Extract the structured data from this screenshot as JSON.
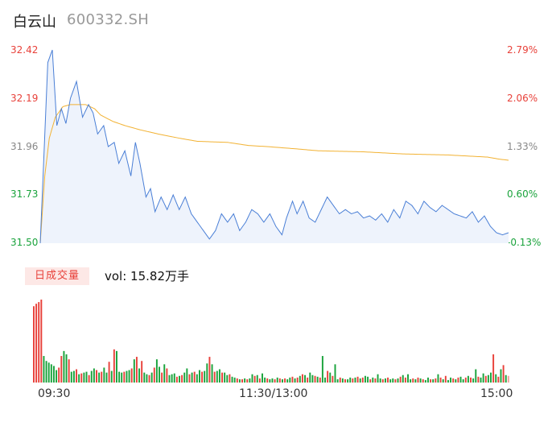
{
  "header": {
    "name": "白云山",
    "code": "600332.SH"
  },
  "volume_panel": {
    "tag": "日成交量",
    "vol_text": "vol: 15.82万手"
  },
  "colors": {
    "up": "#e8413a",
    "down": "#1aa33c",
    "neutral": "#888888",
    "price_line": "#4a7fd6",
    "avg_line": "#f2b233",
    "area": "#eef3fc"
  },
  "chart_data": {
    "type": "line",
    "title": "",
    "price_axis": {
      "ticks": [
        "32.42",
        "32.19",
        "31.96",
        "31.73",
        "31.50"
      ],
      "min": 31.5,
      "max": 32.42
    },
    "pct_axis": {
      "ticks": [
        "2.79%",
        "2.06%",
        "1.33%",
        "0.60%",
        "-0.13%"
      ]
    },
    "x_ticks": [
      "09:30",
      "11:30/13:00",
      "15:00"
    ],
    "price_keys": [
      [
        0,
        31.5
      ],
      [
        2,
        31.84
      ],
      [
        5,
        32.36
      ],
      [
        8,
        32.42
      ],
      [
        11,
        32.06
      ],
      [
        14,
        32.14
      ],
      [
        17,
        32.07
      ],
      [
        20,
        32.19
      ],
      [
        24,
        32.27
      ],
      [
        28,
        32.1
      ],
      [
        32,
        32.16
      ],
      [
        35,
        32.12
      ],
      [
        38,
        32.02
      ],
      [
        42,
        32.06
      ],
      [
        45,
        31.96
      ],
      [
        49,
        31.98
      ],
      [
        52,
        31.88
      ],
      [
        56,
        31.94
      ],
      [
        60,
        31.82
      ],
      [
        63,
        31.98
      ],
      [
        66,
        31.88
      ],
      [
        70,
        31.72
      ],
      [
        73,
        31.76
      ],
      [
        76,
        31.65
      ],
      [
        80,
        31.72
      ],
      [
        84,
        31.66
      ],
      [
        88,
        31.73
      ],
      [
        92,
        31.66
      ],
      [
        96,
        31.72
      ],
      [
        100,
        31.64
      ],
      [
        104,
        31.6
      ],
      [
        108,
        31.56
      ],
      [
        112,
        31.52
      ],
      [
        116,
        31.56
      ],
      [
        120,
        31.64
      ],
      [
        124,
        31.6
      ],
      [
        128,
        31.64
      ],
      [
        132,
        31.56
      ],
      [
        136,
        31.6
      ],
      [
        140,
        31.66
      ],
      [
        144,
        31.64
      ],
      [
        148,
        31.6
      ],
      [
        152,
        31.64
      ],
      [
        156,
        31.58
      ],
      [
        160,
        31.54
      ],
      [
        163,
        31.62
      ],
      [
        167,
        31.7
      ],
      [
        170,
        31.64
      ],
      [
        174,
        31.7
      ],
      [
        178,
        31.62
      ],
      [
        182,
        31.6
      ],
      [
        186,
        31.66
      ],
      [
        190,
        31.72
      ],
      [
        194,
        31.68
      ],
      [
        198,
        31.64
      ],
      [
        202,
        31.66
      ],
      [
        206,
        31.64
      ],
      [
        210,
        31.65
      ],
      [
        214,
        31.62
      ],
      [
        218,
        31.63
      ],
      [
        222,
        31.61
      ],
      [
        226,
        31.64
      ],
      [
        230,
        31.6
      ],
      [
        234,
        31.66
      ],
      [
        238,
        31.62
      ],
      [
        242,
        31.7
      ],
      [
        246,
        31.68
      ],
      [
        250,
        31.64
      ],
      [
        254,
        31.7
      ],
      [
        258,
        31.67
      ],
      [
        262,
        31.65
      ],
      [
        266,
        31.68
      ],
      [
        270,
        31.66
      ],
      [
        274,
        31.64
      ],
      [
        278,
        31.63
      ],
      [
        282,
        31.62
      ],
      [
        286,
        31.65
      ],
      [
        290,
        31.6
      ],
      [
        294,
        31.63
      ],
      [
        298,
        31.58
      ],
      [
        302,
        31.55
      ],
      [
        306,
        31.54
      ],
      [
        310,
        31.55
      ]
    ],
    "avg_keys": [
      [
        0,
        31.5
      ],
      [
        3,
        31.82
      ],
      [
        6,
        32.0
      ],
      [
        10,
        32.1
      ],
      [
        15,
        32.15
      ],
      [
        20,
        32.16
      ],
      [
        30,
        32.16
      ],
      [
        36,
        32.14
      ],
      [
        40,
        32.11
      ],
      [
        48,
        32.08
      ],
      [
        56,
        32.06
      ],
      [
        66,
        32.04
      ],
      [
        78,
        32.02
      ],
      [
        92,
        32.0
      ],
      [
        104,
        31.985
      ],
      [
        124,
        31.98
      ],
      [
        138,
        31.965
      ],
      [
        150,
        31.96
      ],
      [
        168,
        31.95
      ],
      [
        184,
        31.94
      ],
      [
        214,
        31.935
      ],
      [
        240,
        31.925
      ],
      [
        270,
        31.92
      ],
      [
        296,
        31.91
      ],
      [
        304,
        31.9
      ],
      [
        310,
        31.895
      ]
    ],
    "volume": [
      [
        92,
        0
      ],
      [
        95,
        0
      ],
      [
        97,
        0
      ],
      [
        100,
        0
      ],
      [
        32,
        1
      ],
      [
        26,
        1
      ],
      [
        24,
        1
      ],
      [
        22,
        1
      ],
      [
        20,
        1
      ],
      [
        15,
        1
      ],
      [
        18,
        0
      ],
      [
        32,
        0
      ],
      [
        38,
        1
      ],
      [
        34,
        1
      ],
      [
        28,
        0
      ],
      [
        13,
        1
      ],
      [
        14,
        1
      ],
      [
        16,
        0
      ],
      [
        10,
        1
      ],
      [
        11,
        0
      ],
      [
        12,
        1
      ],
      [
        13,
        1
      ],
      [
        9,
        0
      ],
      [
        14,
        1
      ],
      [
        17,
        1
      ],
      [
        15,
        0
      ],
      [
        12,
        1
      ],
      [
        13,
        0
      ],
      [
        18,
        1
      ],
      [
        12,
        1
      ],
      [
        25,
        0
      ],
      [
        14,
        1
      ],
      [
        40,
        0
      ],
      [
        38,
        1
      ],
      [
        13,
        1
      ],
      [
        12,
        1
      ],
      [
        13,
        0
      ],
      [
        14,
        1
      ],
      [
        15,
        1
      ],
      [
        17,
        0
      ],
      [
        28,
        1
      ],
      [
        31,
        0
      ],
      [
        17,
        1
      ],
      [
        26,
        0
      ],
      [
        12,
        1
      ],
      [
        10,
        1
      ],
      [
        9,
        0
      ],
      [
        12,
        1
      ],
      [
        18,
        0
      ],
      [
        28,
        1
      ],
      [
        19,
        1
      ],
      [
        12,
        0
      ],
      [
        22,
        1
      ],
      [
        17,
        0
      ],
      [
        9,
        1
      ],
      [
        10,
        1
      ],
      [
        11,
        1
      ],
      [
        7,
        0
      ],
      [
        8,
        1
      ],
      [
        9,
        0
      ],
      [
        12,
        1
      ],
      [
        17,
        1
      ],
      [
        10,
        0
      ],
      [
        12,
        1
      ],
      [
        13,
        0
      ],
      [
        10,
        1
      ],
      [
        15,
        1
      ],
      [
        13,
        0
      ],
      [
        14,
        1
      ],
      [
        23,
        1
      ],
      [
        31,
        0
      ],
      [
        22,
        1
      ],
      [
        13,
        0
      ],
      [
        14,
        1
      ],
      [
        16,
        1
      ],
      [
        12,
        0
      ],
      [
        12,
        1
      ],
      [
        9,
        1
      ],
      [
        10,
        0
      ],
      [
        7,
        1
      ],
      [
        6,
        1
      ],
      [
        5,
        0
      ],
      [
        4,
        1
      ],
      [
        4,
        0
      ],
      [
        5,
        1
      ],
      [
        4,
        0
      ],
      [
        5,
        1
      ],
      [
        10,
        1
      ],
      [
        8,
        0
      ],
      [
        9,
        1
      ],
      [
        5,
        0
      ],
      [
        11,
        1
      ],
      [
        6,
        1
      ],
      [
        5,
        0
      ],
      [
        4,
        1
      ],
      [
        5,
        1
      ],
      [
        4,
        0
      ],
      [
        6,
        1
      ],
      [
        5,
        0
      ],
      [
        4,
        1
      ],
      [
        5,
        0
      ],
      [
        4,
        1
      ],
      [
        6,
        1
      ],
      [
        7,
        0
      ],
      [
        5,
        1
      ],
      [
        6,
        0
      ],
      [
        8,
        1
      ],
      [
        10,
        0
      ],
      [
        9,
        1
      ],
      [
        6,
        0
      ],
      [
        12,
        1
      ],
      [
        9,
        1
      ],
      [
        8,
        0
      ],
      [
        7,
        1
      ],
      [
        6,
        0
      ],
      [
        32,
        1
      ],
      [
        6,
        1
      ],
      [
        14,
        0
      ],
      [
        12,
        1
      ],
      [
        8,
        0
      ],
      [
        22,
        1
      ],
      [
        4,
        1
      ],
      [
        6,
        0
      ],
      [
        5,
        1
      ],
      [
        4,
        0
      ],
      [
        4,
        1
      ],
      [
        6,
        1
      ],
      [
        5,
        0
      ],
      [
        6,
        1
      ],
      [
        7,
        0
      ],
      [
        5,
        1
      ],
      [
        6,
        0
      ],
      [
        8,
        1
      ],
      [
        7,
        1
      ],
      [
        4,
        0
      ],
      [
        6,
        1
      ],
      [
        5,
        0
      ],
      [
        10,
        1
      ],
      [
        5,
        1
      ],
      [
        4,
        0
      ],
      [
        5,
        1
      ],
      [
        6,
        0
      ],
      [
        4,
        1
      ],
      [
        5,
        1
      ],
      [
        4,
        0
      ],
      [
        5,
        1
      ],
      [
        7,
        0
      ],
      [
        9,
        1
      ],
      [
        6,
        0
      ],
      [
        10,
        1
      ],
      [
        4,
        1
      ],
      [
        5,
        0
      ],
      [
        4,
        1
      ],
      [
        6,
        0
      ],
      [
        5,
        1
      ],
      [
        4,
        0
      ],
      [
        3,
        1
      ],
      [
        6,
        1
      ],
      [
        4,
        0
      ],
      [
        4,
        1
      ],
      [
        5,
        0
      ],
      [
        10,
        1
      ],
      [
        6,
        0
      ],
      [
        4,
        1
      ],
      [
        8,
        0
      ],
      [
        3,
        1
      ],
      [
        6,
        1
      ],
      [
        5,
        0
      ],
      [
        4,
        1
      ],
      [
        6,
        0
      ],
      [
        7,
        1
      ],
      [
        4,
        1
      ],
      [
        6,
        0
      ],
      [
        8,
        1
      ],
      [
        6,
        0
      ],
      [
        5,
        1
      ],
      [
        16,
        1
      ],
      [
        7,
        0
      ],
      [
        6,
        1
      ],
      [
        11,
        1
      ],
      [
        8,
        0
      ],
      [
        9,
        1
      ],
      [
        12,
        1
      ],
      [
        34,
        0
      ],
      [
        10,
        1
      ],
      [
        7,
        0
      ],
      [
        16,
        1
      ],
      [
        21,
        0
      ],
      [
        9,
        1
      ],
      [
        8,
        2
      ]
    ]
  }
}
